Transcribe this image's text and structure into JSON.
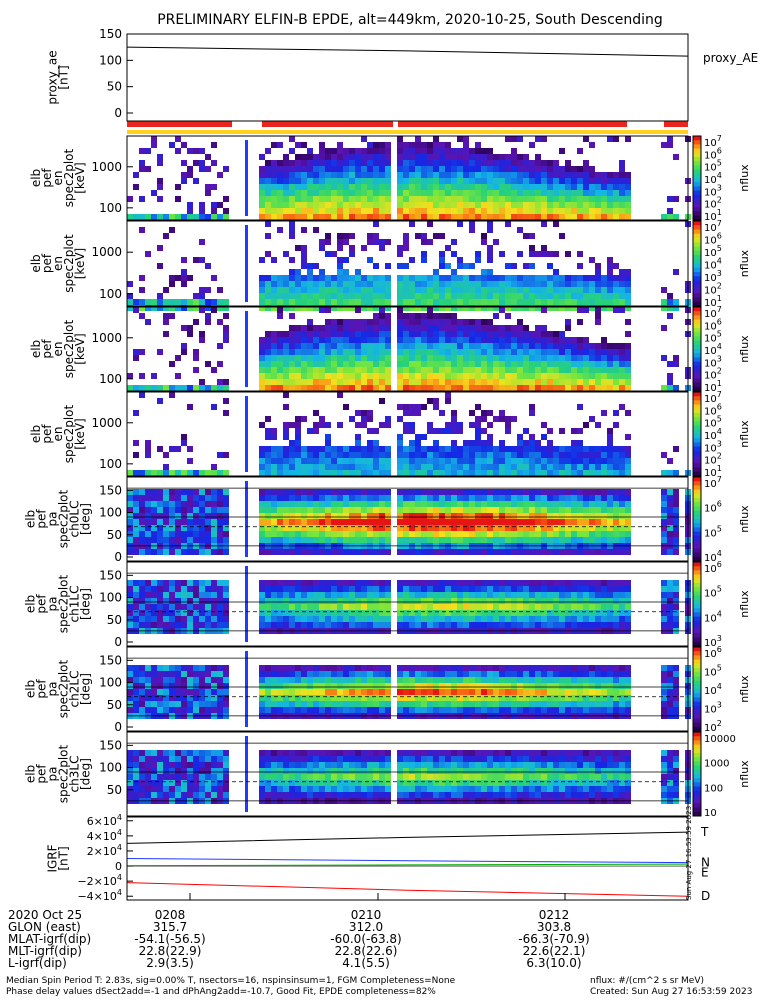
{
  "title": "PRELIMINARY ELFIN-B EPDE, alt=449km, 2020-10-25, South Descending",
  "colors": {
    "proxy_ae_line": "#000000",
    "status_bar_red": "#e8261e",
    "status_bar_yellow": "#ffd21e",
    "igrf_T": "#000000",
    "igrf_N": "#1e3cff",
    "igrf_E": "#00aa00",
    "igrf_D": "#ff0000",
    "gap": "#ffffff"
  },
  "panels": [
    {
      "id": "proxy_ae",
      "ylabel_lines": [
        "proxy_ae",
        "[nT]"
      ],
      "yticks": [
        "150",
        "100",
        "50",
        "0"
      ],
      "side_label": "proxy_AE"
    },
    {
      "id": "spec_en_1",
      "ylabel_lines": [
        "elb",
        "pef",
        "en",
        "spec2plot",
        "[keV]"
      ],
      "yticks": [
        "1000",
        "100"
      ],
      "cbar_ticks": [
        "10^7",
        "10^6",
        "10^5",
        "10^4",
        "10^3",
        "10^2",
        "10^1"
      ],
      "cbar_unit": "nflux"
    },
    {
      "id": "spec_en_2",
      "ylabel_lines": [
        "elb",
        "pef",
        "en",
        "spec2plot",
        "[keV]"
      ],
      "yticks": [
        "1000",
        "100"
      ],
      "cbar_ticks": [
        "10^7",
        "10^6",
        "10^5",
        "10^4",
        "10^3",
        "10^2",
        "10^1"
      ],
      "cbar_unit": "nflux"
    },
    {
      "id": "spec_en_3",
      "ylabel_lines": [
        "elb",
        "pef",
        "en",
        "spec2plot",
        "[keV]"
      ],
      "yticks": [
        "1000",
        "100"
      ],
      "cbar_ticks": [
        "10^7",
        "10^6",
        "10^5",
        "10^4",
        "10^3",
        "10^2",
        "10^1"
      ],
      "cbar_unit": "nflux"
    },
    {
      "id": "spec_en_4",
      "ylabel_lines": [
        "elb",
        "pef",
        "en",
        "spec2plot",
        "[keV]"
      ],
      "yticks": [
        "1000",
        "100"
      ],
      "cbar_ticks": [
        "10^7",
        "10^6",
        "10^5",
        "10^4",
        "10^3",
        "10^2",
        "10^1"
      ],
      "cbar_unit": "nflux"
    },
    {
      "id": "spec_pa_0",
      "ylabel_lines": [
        "elb",
        "pef",
        "pa",
        "spec2plot",
        "ch0LC",
        "[deg]"
      ],
      "yticks": [
        "150",
        "100",
        "50",
        "0"
      ],
      "cbar_ticks": [
        "10^7",
        "10^6",
        "10^5",
        "10^4"
      ],
      "cbar_unit": "nflux"
    },
    {
      "id": "spec_pa_1",
      "ylabel_lines": [
        "elb",
        "pef",
        "pa",
        "spec2plot",
        "ch1LC",
        "[deg]"
      ],
      "yticks": [
        "150",
        "100",
        "50",
        "0"
      ],
      "cbar_ticks": [
        "10^6",
        "10^5",
        "10^4",
        "10^3"
      ],
      "cbar_unit": "nflux"
    },
    {
      "id": "spec_pa_2",
      "ylabel_lines": [
        "elb",
        "pef",
        "pa",
        "spec2plot",
        "ch2LC",
        "[deg]"
      ],
      "yticks": [
        "150",
        "100",
        "50",
        "0"
      ],
      "cbar_ticks": [
        "10^6",
        "10^5",
        "10^4",
        "10^3",
        "10^2"
      ],
      "cbar_unit": "nflux"
    },
    {
      "id": "spec_pa_3",
      "ylabel_lines": [
        "elb",
        "pef",
        "pa",
        "spec2plot",
        "ch3LC",
        "[deg]"
      ],
      "yticks": [
        "150",
        "100",
        "50"
      ],
      "cbar_ticks": [
        "10000",
        "1000",
        "100",
        "10"
      ],
      "cbar_unit": "nflux"
    },
    {
      "id": "igrf",
      "ylabel_lines": [
        "IGRF",
        "[nT]"
      ],
      "yticks": [
        "6×10^4",
        "4×10^4",
        "2×10^4",
        "0",
        "−2×10^4",
        "−4×10^4"
      ],
      "side_labels": [
        "T",
        "N",
        "E",
        "D"
      ]
    }
  ],
  "vertical_stamp": "Sun Aug 27 16:53:59 2023",
  "x_table": {
    "row_labels": [
      "2020 Oct 25",
      "GLON (east)",
      "MLAT-igrf(dip)",
      "MLT-igrf(dip)",
      "L-igrf(dip)"
    ],
    "columns": [
      [
        "0208",
        "315.7",
        "-54.1(-56.5)",
        "22.8(22.9)",
        "2.9(3.5)"
      ],
      [
        "0210",
        "312.0",
        "-60.0(-63.8)",
        "22.8(22.6)",
        "4.1(5.5)"
      ],
      [
        "0212",
        "303.8",
        "-66.3(-70.9)",
        "22.6(22.1)",
        "6.3(10.0)"
      ]
    ]
  },
  "footer": {
    "line1_left": "Median Spin Period T: 2.83s, sig=0.00% T, nsectors=16, nspinsinsum=1, FGM Completeness=None",
    "line2_left": "Phase delay values dSect2add=-1 and dPhAng2add=-10.7, Good Fit, EPDE completeness=82%",
    "line1_right": "nflux: #/(cm^2 s sr MeV)",
    "line2_right": "Created: Sun Aug 27 16:53:59 2023"
  },
  "chart_data": {
    "type": "line",
    "x": [
      "0208",
      "0210",
      "0212"
    ],
    "series": [
      {
        "name": "proxy_AE",
        "values": [
          125,
          118,
          108
        ]
      },
      {
        "name": "T",
        "values": [
          30000,
          38000,
          45000
        ]
      },
      {
        "name": "N",
        "values": [
          10000,
          7000,
          4500
        ]
      },
      {
        "name": "E",
        "values": [
          500,
          1500,
          2500
        ]
      },
      {
        "name": "D",
        "values": [
          -22000,
          -32000,
          -40000
        ]
      }
    ],
    "title": "PRELIMINARY ELFIN-B EPDE, alt=449km, 2020-10-25, South Descending",
    "xlabel": "",
    "ylabel": "proxy_ae [nT]",
    "ylim": [
      0,
      150
    ],
    "grid": false,
    "legend": "right"
  }
}
